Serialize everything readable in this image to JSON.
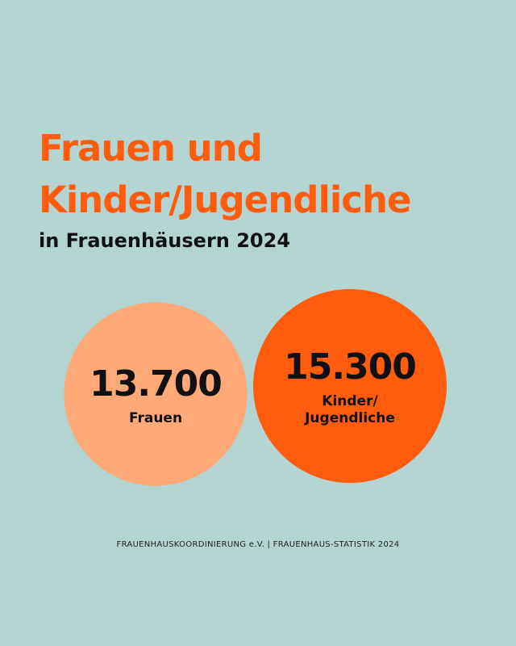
{
  "header": {
    "title_line1": "Frauen und",
    "title_line2": "Kinder/Jugendliche",
    "subtitle": "in Frauenhäusern 2024"
  },
  "colors": {
    "background": "#b3d4d1",
    "accent": "#ff5c0d",
    "light_accent": "#ffa878",
    "text": "#111111"
  },
  "chart_data": {
    "type": "bubble",
    "title": "Frauen und Kinder/Jugendliche",
    "subtitle": "in Frauenhäusern 2024",
    "categories": [
      "Frauen",
      "Kinder/Jugendliche"
    ],
    "values": [
      13700,
      15300
    ],
    "series": [
      {
        "value_label": "13.700",
        "label_lines": [
          "Frauen"
        ],
        "color": "#ffa878"
      },
      {
        "value_label": "15.300",
        "label_lines": [
          "Kinder/",
          "Jugendliche"
        ],
        "color": "#ff5c0d"
      }
    ]
  },
  "footer": {
    "source": "FRAUENHAUSKOORDINIERUNG e.V. | FRAUENHAUS-STATISTIK 2024"
  }
}
